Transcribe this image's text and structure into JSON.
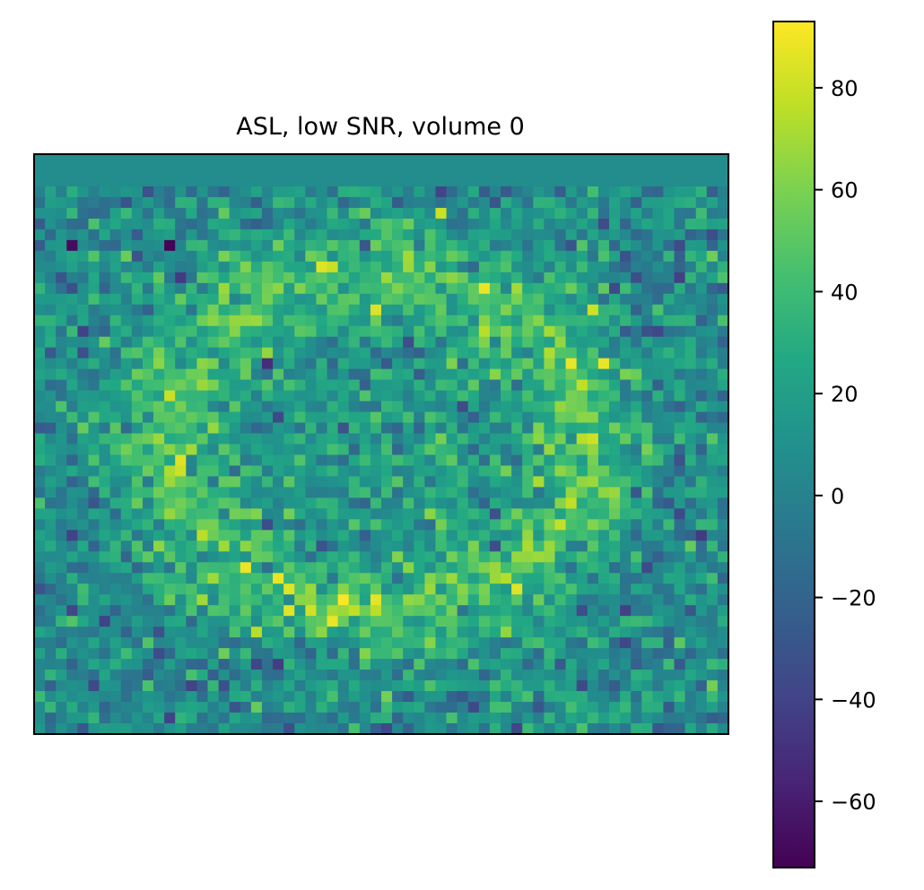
{
  "chart_data": {
    "type": "heatmap",
    "title": "ASL, low SNR, volume 0",
    "xlabel": "",
    "ylabel": "",
    "grid": false,
    "axes_ticks_visible": false,
    "colormap": "viridis",
    "colorbar": {
      "vmin": -73,
      "vmax": 93,
      "ticks": [
        -60,
        -40,
        -20,
        0,
        20,
        40,
        60,
        80
      ],
      "tick_labels": [
        "−60",
        "−40",
        "−20",
        "0",
        "20",
        "40",
        "60",
        "80"
      ]
    },
    "matrix_shape": [
      54,
      64
    ],
    "pattern": "noisy brain slice: background near 0 with random noise (std ~20); ring of elevated perfusion values (~40-60) peaking ~90; top 3 rows uniform ~7",
    "highlighted_values": [
      {
        "row": 28,
        "col": 13,
        "value": 85
      },
      {
        "row": 41,
        "col": 28,
        "value": 92
      },
      {
        "row": 41,
        "col": 31,
        "value": 86
      },
      {
        "row": 5,
        "col": 37,
        "value": 80
      },
      {
        "row": 14,
        "col": 51,
        "value": 80
      },
      {
        "row": 8,
        "col": 12,
        "value": -72
      },
      {
        "row": 8,
        "col": 3,
        "value": -68
      }
    ]
  }
}
